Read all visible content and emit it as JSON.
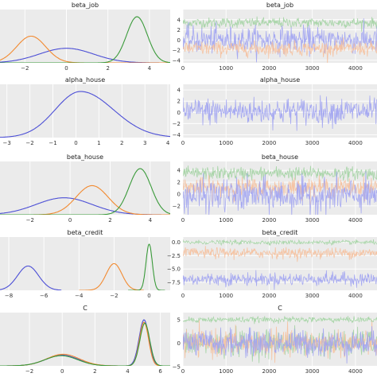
{
  "colors": {
    "blue": "#4c4fd6",
    "orange": "#f28a30",
    "green": "#3a9a3a",
    "trace_blue": "#9ea2f2",
    "trace_orange": "#f6c09c",
    "trace_green": "#a2d3a2",
    "panel_bg": "#ebebeb",
    "grid": "#ffffff"
  },
  "chart_data": [
    {
      "type": "line",
      "kind": "density",
      "title": "beta_job",
      "xlim": [
        -3.2,
        5.0
      ],
      "xticks": [
        -2,
        0,
        2,
        4
      ],
      "series": [
        {
          "color_key": "blue",
          "mean": 0.0,
          "sd": 1.3,
          "peak": 0.3
        },
        {
          "color_key": "orange",
          "mean": -1.7,
          "sd": 0.7,
          "peak": 0.55
        },
        {
          "color_key": "green",
          "mean": 3.4,
          "sd": 0.5,
          "peak": 0.95
        }
      ]
    },
    {
      "type": "line",
      "kind": "trace",
      "title": "beta_job",
      "xlim": [
        0,
        4500
      ],
      "xticks": [
        0,
        1000,
        2000,
        3000,
        4000
      ],
      "ylim": [
        -4.5,
        6
      ],
      "yticks": [
        -4,
        -2,
        0,
        2,
        4
      ],
      "series": [
        {
          "color_key": "trace_green",
          "mean": 3.4,
          "spread": 0.5
        },
        {
          "color_key": "trace_blue",
          "mean": 0.0,
          "spread": 1.3
        },
        {
          "color_key": "trace_orange",
          "mean": -1.7,
          "spread": 0.7
        }
      ]
    },
    {
      "type": "line",
      "kind": "density",
      "title": "alpha_house",
      "xlim": [
        -3.3,
        4.1
      ],
      "xticks": [
        -3,
        -2,
        -1,
        0,
        1,
        2,
        3,
        4
      ],
      "series": [
        {
          "color_key": "blue",
          "mean": 0.2,
          "sd": 1.1,
          "peak": 0.95,
          "tail_right": 0.3
        }
      ]
    },
    {
      "type": "line",
      "kind": "trace",
      "title": "alpha_house",
      "xlim": [
        0,
        4500
      ],
      "xticks": [
        0,
        1000,
        2000,
        3000,
        4000
      ],
      "ylim": [
        -4.5,
        5
      ],
      "yticks": [
        -4,
        -2,
        0,
        2,
        4
      ],
      "series": [
        {
          "color_key": "trace_blue",
          "mean": 0.2,
          "spread": 1.2
        }
      ]
    },
    {
      "type": "line",
      "kind": "density",
      "title": "beta_house",
      "xlim": [
        -3.5,
        5.0
      ],
      "xticks": [
        -2,
        0,
        2,
        4
      ],
      "series": [
        {
          "color_key": "blue",
          "mean": -0.3,
          "sd": 1.4,
          "peak": 0.35
        },
        {
          "color_key": "orange",
          "mean": 1.1,
          "sd": 0.8,
          "peak": 0.6
        },
        {
          "color_key": "green",
          "mean": 3.5,
          "sd": 0.55,
          "peak": 0.95
        }
      ]
    },
    {
      "type": "line",
      "kind": "trace",
      "title": "beta_house",
      "xlim": [
        0,
        4500
      ],
      "xticks": [
        0,
        1000,
        2000,
        3000,
        4000
      ],
      "ylim": [
        -3.5,
        5.5
      ],
      "yticks": [
        -2,
        0,
        2,
        4
      ],
      "series": [
        {
          "color_key": "trace_green",
          "mean": 3.5,
          "spread": 0.55
        },
        {
          "color_key": "trace_orange",
          "mean": 1.1,
          "spread": 0.8
        },
        {
          "color_key": "trace_blue",
          "mean": -0.3,
          "spread": 1.4
        }
      ]
    },
    {
      "type": "line",
      "kind": "density",
      "title": "beta_credit",
      "xlim": [
        -8.5,
        1.2
      ],
      "xticks": [
        -8,
        -6,
        -4,
        -2,
        0
      ],
      "series": [
        {
          "color_key": "blue",
          "mean": -6.9,
          "sd": 0.6,
          "peak": 0.5,
          "clip": [
            -8.5,
            -5.0
          ]
        },
        {
          "color_key": "orange",
          "mean": -2.0,
          "sd": 0.45,
          "peak": 0.55,
          "clip": [
            -4.0,
            -0.3
          ]
        },
        {
          "color_key": "green",
          "mean": 0.0,
          "sd": 0.18,
          "peak": 0.95,
          "clip": [
            -1.2,
            0.9
          ]
        }
      ]
    },
    {
      "type": "line",
      "kind": "trace",
      "title": "beta_credit",
      "xlim": [
        0,
        4500
      ],
      "xticks": [
        0,
        1000,
        2000,
        3000,
        4000
      ],
      "ylim": [
        -9,
        1
      ],
      "yticks": [
        0.0,
        -2.5,
        -5.0,
        -7.5
      ],
      "ytick_labels": [
        "0.0",
        "−2.5",
        "−5.0",
        "−7.5"
      ],
      "series": [
        {
          "color_key": "trace_green",
          "mean": 0.0,
          "spread": 0.2
        },
        {
          "color_key": "trace_orange",
          "mean": -2.0,
          "spread": 0.5
        },
        {
          "color_key": "trace_blue",
          "mean": -6.9,
          "spread": 0.6
        }
      ]
    },
    {
      "type": "line",
      "kind": "density",
      "title": "C",
      "xlim": [
        -3.8,
        6.6
      ],
      "xticks": [
        -2,
        0,
        2,
        4,
        6
      ],
      "series": [
        {
          "color_key": "blue",
          "mean": 0.0,
          "sd": 1.0,
          "peak": 0.22,
          "plus_mean": 5.0,
          "plus_sd": 0.3,
          "plus_peak": 0.95
        },
        {
          "color_key": "orange",
          "mean": 0.05,
          "sd": 1.0,
          "peak": 0.24,
          "plus_mean": 5.0,
          "plus_sd": 0.28,
          "plus_peak": 0.9
        },
        {
          "color_key": "green",
          "mean": -0.05,
          "sd": 1.0,
          "peak": 0.21,
          "plus_mean": 5.05,
          "plus_sd": 0.3,
          "plus_peak": 0.88
        }
      ]
    },
    {
      "type": "line",
      "kind": "trace",
      "title": "C",
      "xlim": [
        0,
        4500
      ],
      "xticks": [
        0,
        1000,
        2000,
        3000,
        4000
      ],
      "ylim": [
        -4.8,
        6.5
      ],
      "yticks": [
        -5,
        0,
        5
      ],
      "series": [
        {
          "color_key": "trace_green",
          "mean": 0.0,
          "spread": 1.4
        },
        {
          "color_key": "trace_orange",
          "mean": 0.0,
          "spread": 1.4
        },
        {
          "color_key": "trace_blue",
          "mean": 0.0,
          "spread": 1.4
        },
        {
          "color_key": "trace_green",
          "mean": 5.0,
          "spread": 0.3
        }
      ]
    }
  ]
}
